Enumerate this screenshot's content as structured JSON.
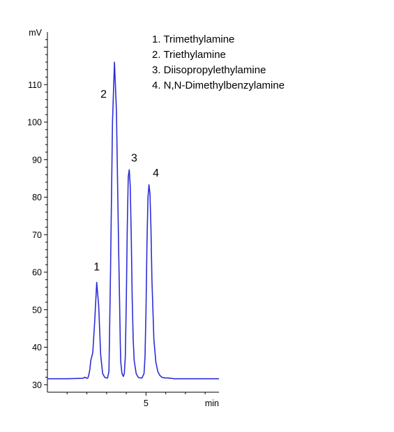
{
  "chart_data": {
    "type": "line",
    "title": "",
    "ylabel": "mV",
    "xlabel": "min",
    "xlim": [
      0,
      8.7
    ],
    "ylim": [
      28,
      124
    ],
    "y_ticks": [
      30,
      40,
      50,
      60,
      70,
      80,
      90,
      100,
      110
    ],
    "x_ticks": [
      5
    ],
    "grid": false,
    "legend": {
      "placement": "top-right",
      "entries": [
        "1.  Trimethylamine",
        "2.  Triethylamine",
        "3.  Diisopropylethylamine",
        "4.  N,N-Dimethylbenzylamine"
      ]
    },
    "peak_labels": [
      {
        "label": "1",
        "x": 2.5,
        "y": 60.5
      },
      {
        "label": "2",
        "x": 2.85,
        "y": 106.5
      },
      {
        "label": "3",
        "x": 4.4,
        "y": 89.5
      },
      {
        "label": "4",
        "x": 5.5,
        "y": 85.5
      }
    ],
    "series": [
      {
        "color": "#2d2dd6",
        "x": [
          0.0,
          1.0,
          1.8,
          1.9,
          2.0,
          2.05,
          2.1,
          2.15,
          2.2,
          2.3,
          2.4,
          2.5,
          2.6,
          2.7,
          2.8,
          2.9,
          3.0,
          3.05,
          3.12,
          3.2,
          3.3,
          3.4,
          3.5,
          3.6,
          3.7,
          3.72,
          3.78,
          3.85,
          3.9,
          3.95,
          4.0,
          4.05,
          4.1,
          4.15,
          4.2,
          4.25,
          4.3,
          4.35,
          4.4,
          4.5,
          4.6,
          4.7,
          4.8,
          4.9,
          4.95,
          5.0,
          5.05,
          5.1,
          5.15,
          5.2,
          5.25,
          5.3,
          5.4,
          5.5,
          5.6,
          5.7,
          5.8,
          5.85,
          5.9,
          5.95,
          6.0,
          6.05,
          6.1,
          6.15,
          6.2,
          6.3,
          6.4,
          6.5,
          6.6,
          6.8,
          7.0,
          7.5,
          8.0,
          8.7
        ],
        "y": [
          31.6,
          31.6,
          31.7,
          32.0,
          31.7,
          31.8,
          32.6,
          34.0,
          36.5,
          38.5,
          47.0,
          57.3,
          51.0,
          38.0,
          33.0,
          32.0,
          31.8,
          31.8,
          33.5,
          60.0,
          100.0,
          116.0,
          103.0,
          70.0,
          40.0,
          36.0,
          33.0,
          32.2,
          33.0,
          37.5,
          52.0,
          72.0,
          85.5,
          87.3,
          83.0,
          70.0,
          53.0,
          42.0,
          36.5,
          33.0,
          32.0,
          31.8,
          31.8,
          33.0,
          37.5,
          50.0,
          68.0,
          80.0,
          83.3,
          81.0,
          72.0,
          58.0,
          42.0,
          36.0,
          33.5,
          32.5,
          32.0,
          31.9,
          31.9,
          31.8,
          31.8,
          31.8,
          31.8,
          31.8,
          31.7,
          31.7,
          31.6,
          31.6,
          31.6,
          31.6,
          31.6,
          31.6,
          31.6,
          31.6
        ]
      }
    ]
  }
}
